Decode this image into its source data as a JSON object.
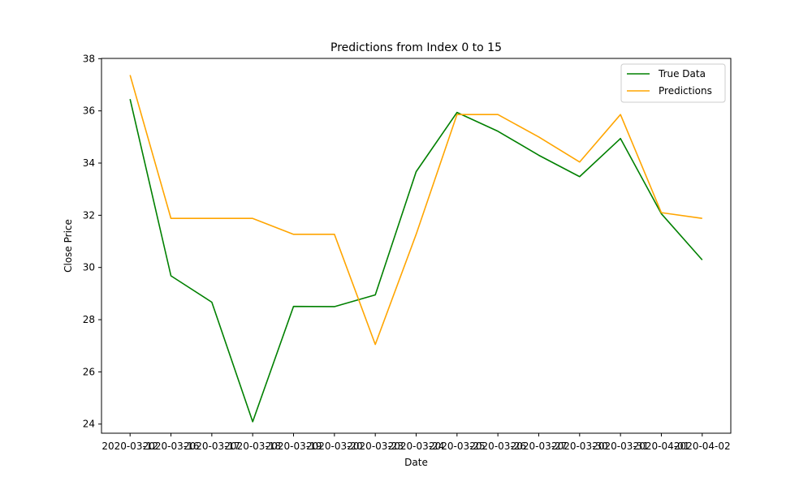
{
  "chart_data": {
    "type": "line",
    "title": "Predictions from Index 0 to 15",
    "xlabel": "Date",
    "ylabel": "Close Price",
    "categories": [
      "2020-03-12",
      "2020-03-16",
      "2020-03-17",
      "2020-03-18",
      "2020-03-19",
      "2020-03-20",
      "2020-03-23",
      "2020-03-24",
      "2020-03-25",
      "2020-03-26",
      "2020-03-27",
      "2020-03-30",
      "2020-03-31",
      "2020-04-01",
      "2020-04-02"
    ],
    "series": [
      {
        "name": "True Data",
        "color": "#008000",
        "values": [
          36.45,
          29.68,
          28.67,
          24.09,
          28.51,
          28.5,
          28.95,
          33.67,
          35.94,
          35.22,
          34.3,
          33.48,
          34.94,
          32.06,
          30.29
        ]
      },
      {
        "name": "Predictions",
        "color": "#ffa500",
        "values": [
          37.37,
          31.88,
          31.88,
          31.88,
          31.27,
          31.27,
          27.05,
          31.27,
          35.86,
          35.86,
          35.0,
          34.04,
          35.86,
          32.1,
          31.88
        ]
      }
    ],
    "ylim": [
      23.65,
      38.01
    ],
    "yticks": [
      24,
      26,
      28,
      30,
      32,
      34,
      36,
      38
    ],
    "grid": false,
    "legend": "top-right"
  }
}
